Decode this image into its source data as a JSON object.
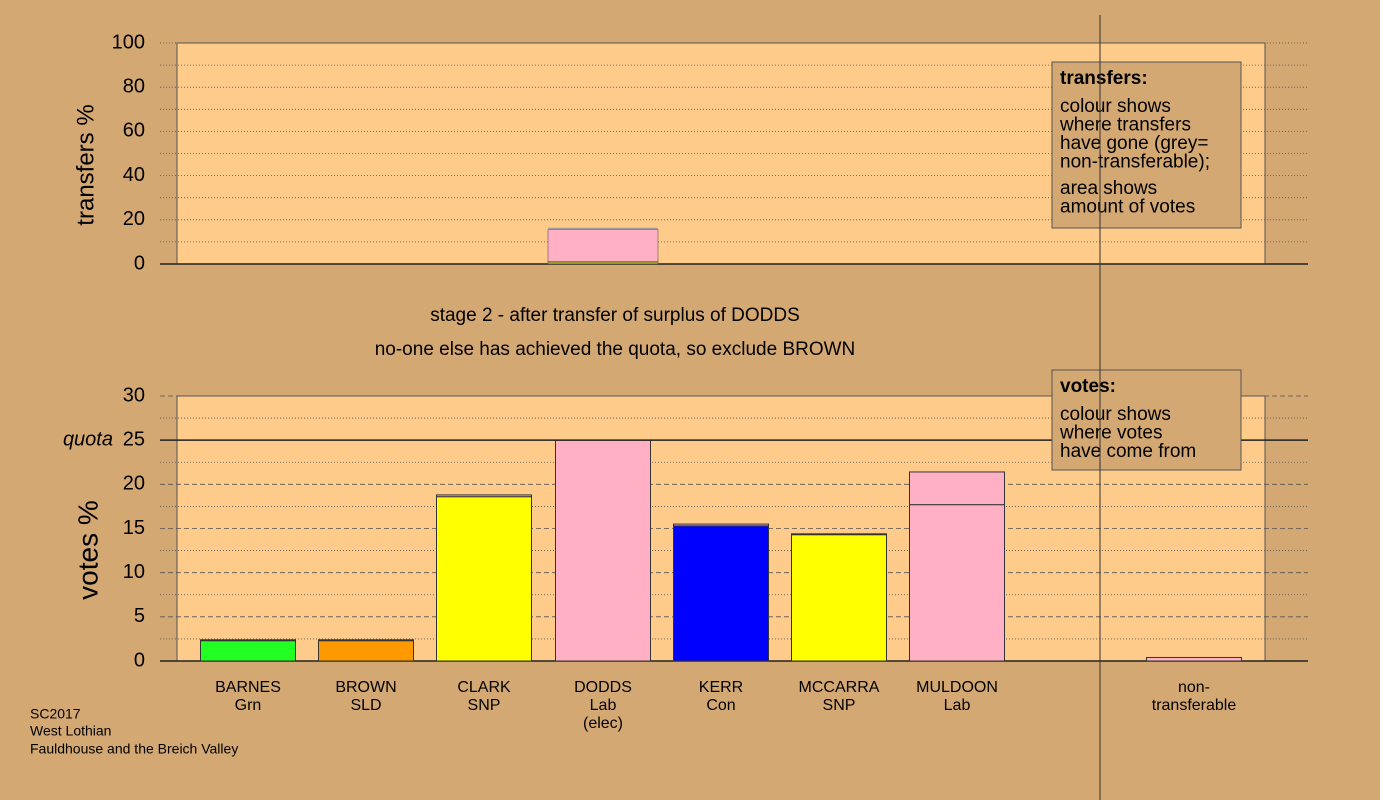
{
  "chart_data": [
    {
      "type": "stacked-column",
      "ylabel": "transfers %",
      "ylim": [
        0,
        100
      ],
      "yticks": [
        0,
        20,
        40,
        60,
        80,
        100
      ],
      "minor_yticks": [
        10,
        30,
        50,
        70,
        90
      ],
      "values": [
        0.6,
        0.6,
        14.3,
        0.9
      ],
      "colors": [
        "#22ff22",
        "#ffff00",
        "#ffb0c4",
        "#a0a0a0"
      ],
      "legend": {
        "title": "transfers:",
        "lines": [
          [
            "colour shows",
            "where transfers",
            "have gone (grey=",
            "non-transferable);"
          ],
          [
            "area shows",
            "amount of votes"
          ]
        ]
      }
    },
    {
      "type": "bar",
      "title": [
        "stage 2 - after transfer of surplus of DODDS",
        "no-one else has achieved the quota, so exclude BROWN"
      ],
      "ylabel": "votes %",
      "ylim": [
        0,
        30
      ],
      "yticks": [
        0,
        5,
        10,
        15,
        20,
        25,
        30
      ],
      "minor_yticks": [
        2.5,
        7.5,
        12.5,
        17.5,
        22.5,
        27.5
      ],
      "quota": {
        "label": "quota",
        "value": 25
      },
      "categories": [
        [
          "BARNES",
          "Grn"
        ],
        [
          "BROWN",
          "SLD"
        ],
        [
          "CLARK",
          "SNP"
        ],
        [
          "DODDS",
          "Lab",
          "(elec)"
        ],
        [
          "KERR",
          "Con"
        ],
        [
          "MCCARRA",
          "SNP"
        ],
        [
          "MULDOON",
          "Lab"
        ],
        [
          "non-",
          "transferable"
        ]
      ],
      "series": [
        {
          "colors": [
            "#22ff22",
            "#ff9900",
            "#ffff00",
            "#ffb0c4",
            "#0000ff",
            "#ffff00",
            "#ffb0c4",
            null
          ],
          "values": [
            2.3,
            2.3,
            18.6,
            25,
            15.3,
            14.3,
            17.7,
            null
          ]
        },
        {
          "color": "#ffb0c4",
          "values": [
            0.1,
            0.1,
            0.2,
            0,
            0.2,
            0.1,
            3.7,
            0.4
          ]
        }
      ],
      "legend": {
        "title": "votes:",
        "lines": [
          [
            "colour shows",
            "where votes",
            "have come from"
          ]
        ]
      }
    }
  ],
  "footer": [
    "SC2017",
    "West Lothian",
    "Fauldhouse and the Breich Valley"
  ]
}
